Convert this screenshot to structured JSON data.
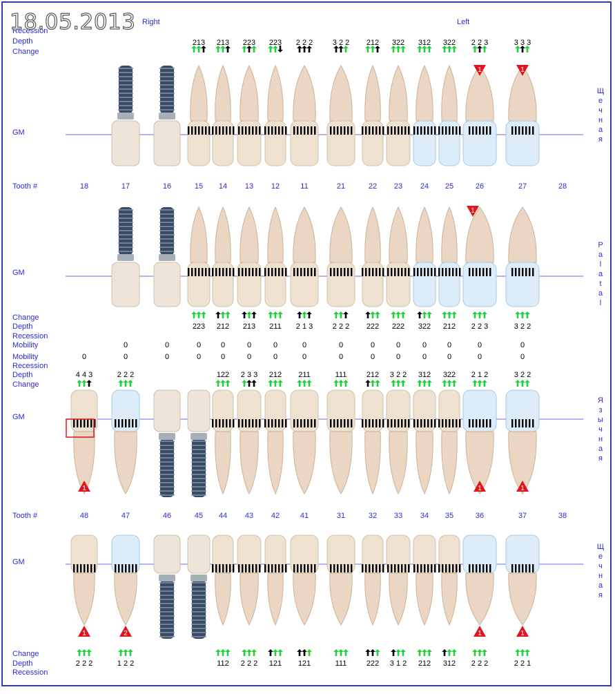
{
  "date": "18.05.2013",
  "side_labels": {
    "right": "Right",
    "left": "Left"
  },
  "row_labels": {
    "recession": "Recession",
    "depth": "Depth",
    "change": "Change",
    "gm": "GM",
    "tooth": "Tooth #",
    "mobility": "Mobility"
  },
  "vertical_labels": {
    "upper_buccal": "Щечная",
    "upper_palatal": "Palatal",
    "lower_lingual": "Язычная",
    "lower_buccal": "Щечная"
  },
  "upper_teeth": [
    "18",
    "17",
    "16",
    "15",
    "14",
    "13",
    "12",
    "11",
    "21",
    "22",
    "23",
    "24",
    "25",
    "26",
    "27",
    "28"
  ],
  "lower_teeth": [
    "48",
    "47",
    "46",
    "45",
    "44",
    "43",
    "42",
    "41",
    "31",
    "32",
    "33",
    "34",
    "35",
    "36",
    "37",
    "38"
  ],
  "upper_buccal_depth": [
    "",
    "",
    "",
    "213",
    "213",
    "223",
    "223",
    "2 2 2",
    "3 2 2",
    "212",
    "322",
    "312",
    "322",
    "2 2 3",
    "3 3 3",
    ""
  ],
  "upper_palatal_depth": [
    "",
    "",
    "",
    "223",
    "212",
    "213",
    "211",
    "2 1 3",
    "2 2 2",
    "222",
    "222",
    "322",
    "212",
    "2 2 3",
    "3 2 2",
    ""
  ],
  "upper_mobility": [
    "",
    "0",
    "0",
    "0",
    "0",
    "0",
    "0",
    "0",
    "0",
    "0",
    "0",
    "0",
    "0",
    "0",
    "0",
    ""
  ],
  "lower_mobility": [
    "0",
    "0",
    "0",
    "0",
    "0",
    "0",
    "0",
    "0",
    "0",
    "0",
    "0",
    "0",
    "0",
    "0",
    "0",
    ""
  ],
  "lower_lingual_depth": [
    "4 4 3",
    "2 2 2",
    "",
    "",
    "122",
    "2 3 3",
    "212",
    "211",
    "111",
    "212",
    "3 2 2",
    "312",
    "322",
    "2 1 2",
    "3 2 2",
    ""
  ],
  "lower_buccal_depth": [
    "2 2 2",
    "1 2 2",
    "",
    "",
    "112",
    "2 2 2",
    "121",
    "121",
    "111",
    "222",
    "3 1 2",
    "212",
    "312",
    "2 2 2",
    "2 2 1",
    ""
  ],
  "furcation_upper_buccal": [
    {
      "tooth": "26",
      "grade": "1"
    },
    {
      "tooth": "27",
      "grade": "1"
    }
  ],
  "furcation_upper_palatal": [
    {
      "tooth": "26",
      "grade": "1"
    }
  ],
  "furcation_lower_lingual": [
    {
      "tooth": "48",
      "grade": "1"
    },
    {
      "tooth": "36",
      "grade": "1"
    },
    {
      "tooth": "37",
      "grade": "1"
    }
  ],
  "furcation_lower_buccal": [
    {
      "tooth": "48",
      "grade": "1"
    },
    {
      "tooth": "47",
      "grade": "2"
    },
    {
      "tooth": "36",
      "grade": "1"
    },
    {
      "tooth": "37",
      "grade": "1"
    }
  ],
  "colors": {
    "label_blue": "#2b2bd4",
    "gm_line": "#6a6ae0",
    "arrow_green": "#1fd13a",
    "alert_red": "#e0141e",
    "frame": "#3b3bb0"
  }
}
